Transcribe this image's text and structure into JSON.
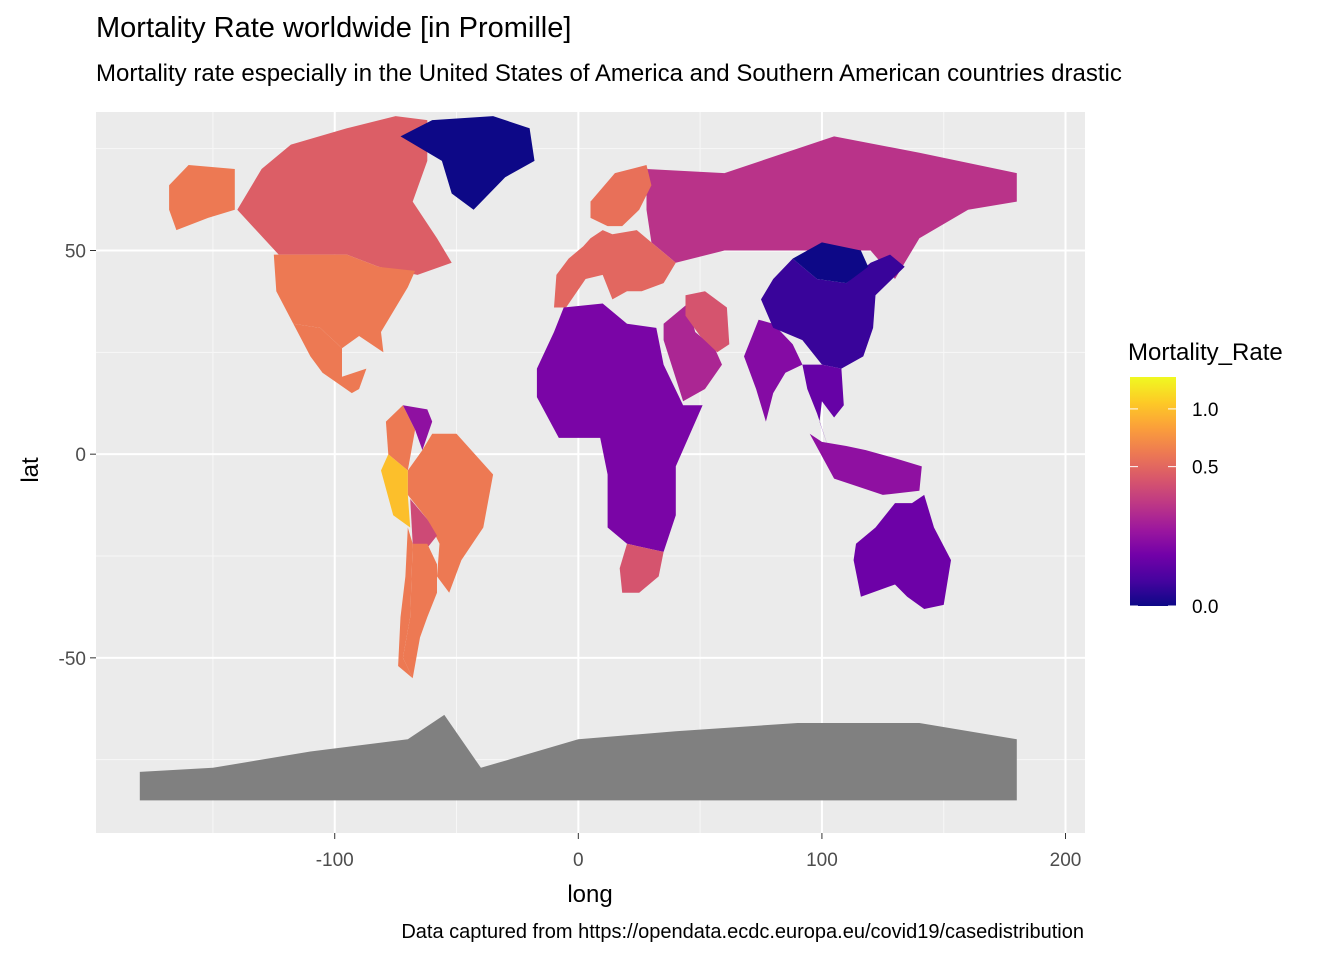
{
  "title": "Mortality Rate worldwide [in Promille]",
  "subtitle": "Mortality rate especially in the United States of America and Southern American countries drastic",
  "caption": "Data captured from https://opendata.ecdc.europa.eu/covid19/casedistribution",
  "chart_data": {
    "type": "choropleth-map",
    "xlabel": "long",
    "ylabel": "lat",
    "xlim": [
      -198,
      208
    ],
    "ylim": [
      -93,
      84
    ],
    "xticks": [
      -100,
      0,
      100,
      200
    ],
    "xtick_labels": [
      "-100",
      "0",
      "100",
      "200"
    ],
    "yticks": [
      -50,
      0,
      50
    ],
    "ytick_labels": [
      "-50",
      "0",
      "50"
    ],
    "grid": true,
    "panel_background": "#ebebeb",
    "missing_color": "#808080",
    "legend": {
      "title": "Mortality_Rate",
      "position": "right",
      "scale": "sqrt",
      "range": [
        0,
        1.35
      ],
      "breaks": [
        0.0,
        0.5,
        1.0
      ],
      "break_labels": [
        "0.0",
        "0.5",
        "1.0"
      ],
      "colors": [
        "#0d0887",
        "#46039f",
        "#7201a8",
        "#9c179e",
        "#bd3786",
        "#d8576b",
        "#ed7953",
        "#fb9f3a",
        "#fdca26",
        "#f0f921"
      ]
    },
    "regions": [
      {
        "region": "Canada",
        "value": 0.45
      },
      {
        "region": "United States",
        "value": 0.6
      },
      {
        "region": "Alaska",
        "value": 0.6
      },
      {
        "region": "Greenland",
        "value": 0.0
      },
      {
        "region": "Mexico",
        "value": 0.6
      },
      {
        "region": "Colombia",
        "value": 0.6
      },
      {
        "region": "Venezuela",
        "value": 0.12
      },
      {
        "region": "Brazil",
        "value": 0.6
      },
      {
        "region": "Peru",
        "value": 1.0
      },
      {
        "region": "Bolivia",
        "value": 0.35
      },
      {
        "region": "Chile",
        "value": 0.6
      },
      {
        "region": "Argentina",
        "value": 0.6
      },
      {
        "region": "Russia",
        "value": 0.25
      },
      {
        "region": "Europe",
        "value": 0.5
      },
      {
        "region": "Scandinavia",
        "value": 0.55
      },
      {
        "region": "Africa",
        "value": 0.08
      },
      {
        "region": "South Africa",
        "value": 0.4
      },
      {
        "region": "Middle East",
        "value": 0.2
      },
      {
        "region": "Iran",
        "value": 0.4
      },
      {
        "region": "India",
        "value": 0.1
      },
      {
        "region": "China",
        "value": 0.01
      },
      {
        "region": "Mongolia",
        "value": 0.0
      },
      {
        "region": "Southeast Asia",
        "value": 0.05
      },
      {
        "region": "Indonesia",
        "value": 0.12
      },
      {
        "region": "Australia",
        "value": 0.06
      },
      {
        "region": "Antarctica",
        "value": null
      }
    ]
  }
}
